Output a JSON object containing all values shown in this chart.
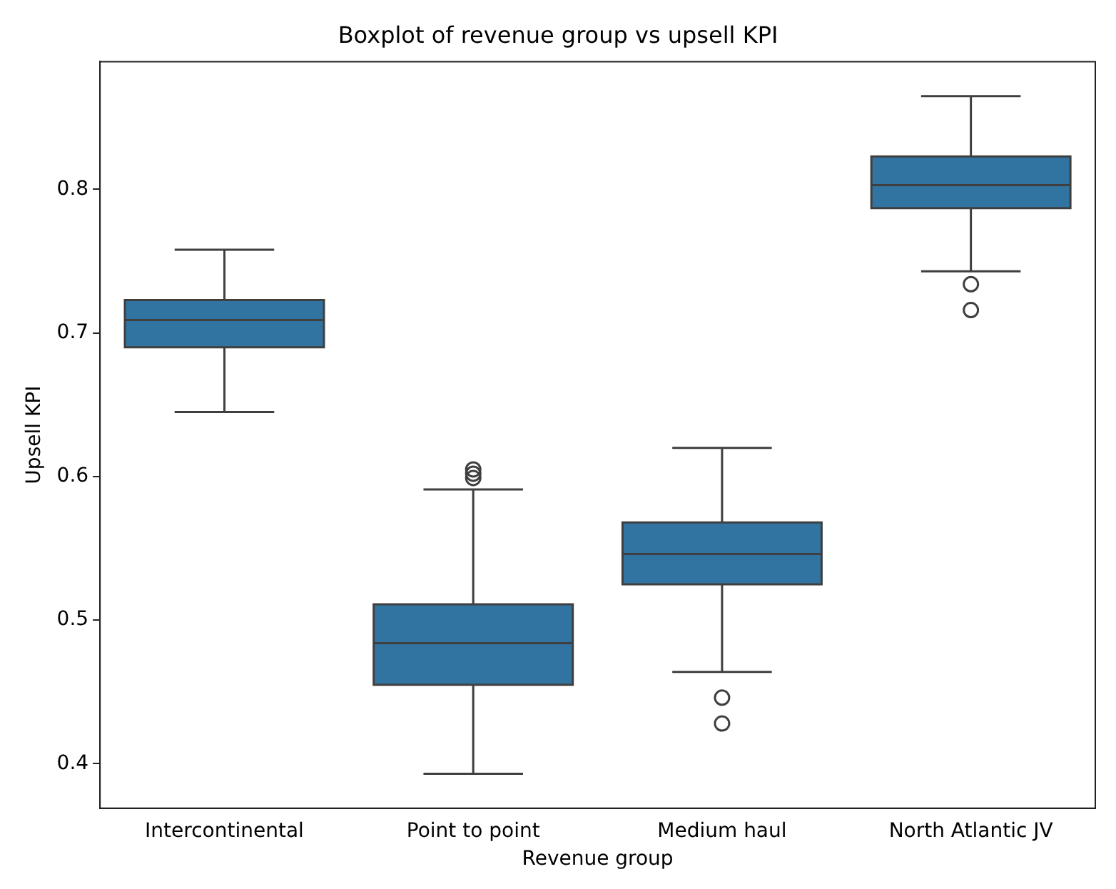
{
  "chart_data": {
    "type": "box",
    "title": "Boxplot of revenue group vs upsell KPI",
    "xlabel": "Revenue group",
    "ylabel": "Upsell KPI",
    "categories": [
      "Intercontinental",
      "Point to point",
      "Medium haul",
      "North Atlantic JV"
    ],
    "color": "#3274a1",
    "boxes": [
      {
        "low": 0.645,
        "q1": 0.69,
        "median": 0.709,
        "q3": 0.723,
        "high": 0.758
      },
      {
        "low": 0.393,
        "q1": 0.455,
        "median": 0.484,
        "q3": 0.511,
        "high": 0.591,
        "outliers": [
          0.599,
          0.602,
          0.605
        ]
      },
      {
        "low": 0.464,
        "q1": 0.525,
        "median": 0.546,
        "q3": 0.568,
        "high": 0.62,
        "outliers": [
          0.446,
          0.428
        ]
      },
      {
        "low": 0.743,
        "q1": 0.787,
        "median": 0.803,
        "q3": 0.823,
        "high": 0.865,
        "outliers": [
          0.734,
          0.716
        ]
      }
    ],
    "ylim": [
      0.369,
      0.889
    ],
    "yticks": [
      0.4,
      0.5,
      0.6,
      0.7,
      0.8
    ],
    "grid": false,
    "legend": false
  }
}
